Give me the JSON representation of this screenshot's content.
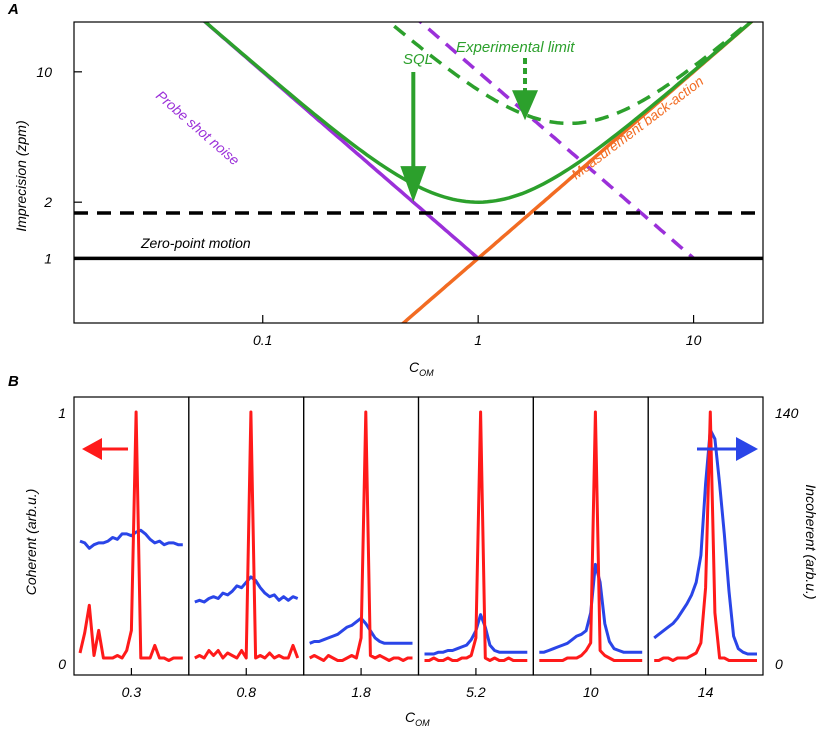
{
  "chart_data": [
    {
      "type": "line",
      "panel_label": "A",
      "xscale": "log",
      "yscale": "log",
      "xlim": [
        0.0133,
        21
      ],
      "ylim": [
        0.45,
        18.5
      ],
      "xlabel_main": "C",
      "xlabel_sub": "OM",
      "ylabel": "Imprecision (zpm)",
      "xticks": [
        {
          "value": 0.1,
          "label": "0.1"
        },
        {
          "value": 1,
          "label": "1"
        },
        {
          "value": 10,
          "label": "10"
        }
      ],
      "yticks": [
        {
          "value": 1,
          "label": "1"
        },
        {
          "value": 2,
          "label": "2"
        },
        {
          "value": 10,
          "label": "10"
        }
      ],
      "colors": {
        "green": "#2ca02c",
        "purple": "#9b30d9",
        "orange": "#f26b22",
        "black": "#000000"
      },
      "series": [
        {
          "name": "Probe shot noise",
          "label": "Probe shot noise",
          "formula": "1/x",
          "x_range": [
            0.0133,
            1
          ],
          "color": "#9b30d9",
          "dash": false
        },
        {
          "name": "Probe shot noise (dashed)",
          "formula": "10/x",
          "x_range": [
            0.133,
            10
          ],
          "color": "#9b30d9",
          "dash": true
        },
        {
          "name": "Measurement back-action",
          "label": "Measurement back-action",
          "formula": "x",
          "x_range": [
            0.24,
            21
          ],
          "color": "#f26b22",
          "dash": false
        },
        {
          "name": "SQL",
          "label": "SQL",
          "formula": "1/x + x",
          "x_range": [
            0.0133,
            21
          ],
          "color": "#2ca02c",
          "dash": false
        },
        {
          "name": "Experimental limit",
          "label": "Experimental limit",
          "formula": "7/x + x",
          "x_range": [
            0.11,
            21
          ],
          "color": "#2ca02c",
          "dash": true
        },
        {
          "name": "Zero-point motion",
          "label": "Zero-point motion",
          "y_const": 1,
          "color": "#000000",
          "dash": false
        },
        {
          "name": "Zero-point motion x1.75 (dashed)",
          "y_const": 1.75,
          "color": "#000000",
          "dash": true
        }
      ],
      "annotations": [
        {
          "text": "SQL",
          "arrow_to": {
            "x": 0.5,
            "y": 2.0
          }
        },
        {
          "text": "Experimental limit",
          "arrow_to": {
            "x": 1.65,
            "y": 5.5
          }
        }
      ]
    },
    {
      "type": "line",
      "panel_label": "B",
      "xlabel_main": "C",
      "xlabel_sub": "OM",
      "ylabel_left": "Coherent (arb.u.)",
      "ylabel_right": "Incoherent (arb.u.)",
      "left_ticks": [
        {
          "value": 0,
          "label": "0"
        },
        {
          "value": 1,
          "label": "1"
        }
      ],
      "right_ticks": [
        {
          "value": 0,
          "label": "0"
        },
        {
          "value": 140,
          "label": "140"
        }
      ],
      "ylim_left": [
        0,
        1
      ],
      "ylim_right": [
        0,
        140
      ],
      "colors": {
        "coherent": "#ff1a1a",
        "incoherent": "#2a45e8"
      },
      "panels": [
        {
          "label": "0.3",
          "coherent": [
            0.04,
            0.12,
            0.23,
            0.03,
            0.13,
            0.02,
            0.02,
            0.02,
            0.03,
            0.02,
            0.05,
            0.13,
            1.0,
            0.02,
            0.02,
            0.02,
            0.07,
            0.02,
            0.02,
            0.01,
            0.02,
            0.02,
            0.02
          ],
          "incoherent": [
            68,
            67,
            64,
            66,
            67,
            67,
            68,
            70,
            69,
            72,
            72,
            71,
            73,
            74,
            72,
            69,
            67,
            68,
            66,
            67,
            67,
            66,
            66
          ]
        },
        {
          "label": "0.8",
          "coherent": [
            0.02,
            0.03,
            0.02,
            0.05,
            0.03,
            0.05,
            0.02,
            0.04,
            0.03,
            0.02,
            0.05,
            0.02,
            1.0,
            0.02,
            0.03,
            0.02,
            0.04,
            0.02,
            0.03,
            0.02,
            0.02,
            0.07,
            0.02
          ],
          "incoherent": [
            34,
            35,
            34,
            36,
            37,
            36,
            39,
            38,
            40,
            43,
            42,
            45,
            48,
            46,
            42,
            39,
            37,
            38,
            35,
            37,
            35,
            37,
            36
          ]
        },
        {
          "label": "1.8",
          "coherent": [
            0.02,
            0.03,
            0.02,
            0.01,
            0.03,
            0.02,
            0.01,
            0.01,
            0.02,
            0.03,
            0.02,
            0.1,
            1.0,
            0.03,
            0.02,
            0.03,
            0.02,
            0.01,
            0.02,
            0.02,
            0.01,
            0.02,
            0.02
          ],
          "incoherent": [
            11,
            12,
            12,
            13,
            14,
            15,
            16,
            18,
            20,
            21,
            23,
            25,
            22,
            18,
            14,
            12,
            11,
            11,
            11,
            11,
            11,
            11,
            11
          ]
        },
        {
          "label": "5.2",
          "coherent": [
            0.01,
            0.01,
            0.02,
            0.01,
            0.01,
            0.02,
            0.01,
            0.01,
            0.02,
            0.02,
            0.03,
            0.1,
            1.0,
            0.02,
            0.01,
            0.02,
            0.01,
            0.01,
            0.02,
            0.01,
            0.01,
            0.01,
            0.01
          ],
          "incoherent": [
            5,
            5,
            5,
            6,
            6,
            7,
            7,
            8,
            9,
            10,
            13,
            18,
            27,
            20,
            10,
            7,
            6,
            6,
            6,
            6,
            6,
            6,
            6
          ]
        },
        {
          "label": "10",
          "coherent": [
            0.01,
            0.01,
            0.01,
            0.01,
            0.01,
            0.01,
            0.02,
            0.02,
            0.02,
            0.03,
            0.05,
            0.08,
            1.0,
            0.05,
            0.03,
            0.02,
            0.01,
            0.01,
            0.01,
            0.01,
            0.01,
            0.01,
            0.01
          ],
          "incoherent": [
            6,
            6,
            7,
            8,
            9,
            10,
            11,
            13,
            15,
            16,
            18,
            28,
            55,
            45,
            22,
            12,
            8,
            7,
            6,
            6,
            6,
            6,
            6
          ]
        },
        {
          "label": "14",
          "coherent": [
            0.01,
            0.01,
            0.02,
            0.02,
            0.01,
            0.02,
            0.02,
            0.02,
            0.03,
            0.04,
            0.08,
            0.3,
            1.0,
            0.2,
            0.02,
            0.02,
            0.01,
            0.01,
            0.01,
            0.01,
            0.01,
            0.01,
            0.01
          ],
          "incoherent": [
            14,
            16,
            18,
            20,
            22,
            25,
            29,
            33,
            38,
            45,
            60,
            100,
            130,
            125,
            100,
            72,
            40,
            15,
            8,
            6,
            5,
            5,
            5
          ]
        }
      ]
    }
  ]
}
